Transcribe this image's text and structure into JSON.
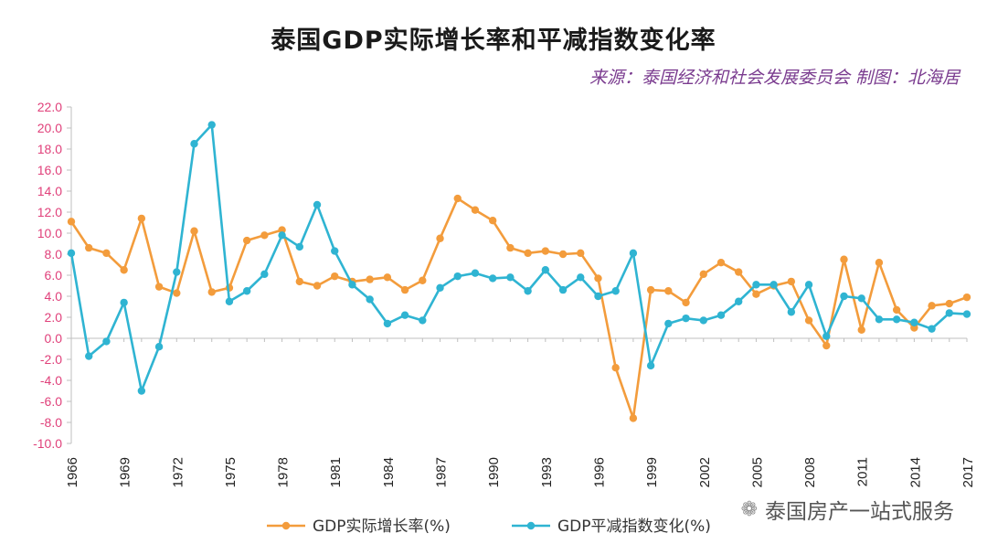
{
  "chart_data": {
    "type": "line",
    "title": "泰国GDP实际增长率和平减指数变化率",
    "subtitle": "来源：泰国经济和社会发展委员会  制图：北海居",
    "xlabel": "",
    "ylabel": "",
    "x": [
      1966,
      1967,
      1968,
      1969,
      1970,
      1971,
      1972,
      1973,
      1974,
      1975,
      1976,
      1977,
      1978,
      1979,
      1980,
      1981,
      1982,
      1983,
      1984,
      1985,
      1986,
      1987,
      1988,
      1989,
      1990,
      1991,
      1992,
      1993,
      1994,
      1995,
      1996,
      1997,
      1998,
      1999,
      2000,
      2001,
      2002,
      2003,
      2004,
      2005,
      2006,
      2007,
      2008,
      2009,
      2010,
      2011,
      2012,
      2013,
      2014,
      2015,
      2016,
      2017
    ],
    "x_tick_labels": [
      "1966",
      "1969",
      "1972",
      "1975",
      "1978",
      "1981",
      "1984",
      "1987",
      "1990",
      "1993",
      "1996",
      "1999",
      "2002",
      "2005",
      "2008",
      "2011",
      "2014",
      "2017"
    ],
    "y_tick_labels": [
      "22.0",
      "20.0",
      "18.0",
      "16.0",
      "14.0",
      "12.0",
      "10.0",
      "8.0",
      "6.0",
      "4.0",
      "2.0",
      "0.0",
      "-2.0",
      "-4.0",
      "-6.0",
      "-8.0",
      "-10.0"
    ],
    "ylim": [
      -10,
      22
    ],
    "grid": false,
    "legend_position": "bottom",
    "series": [
      {
        "name": "GDP实际增长率(%)",
        "color": "#f39c3c",
        "values": [
          11.1,
          8.6,
          8.1,
          6.5,
          11.4,
          4.9,
          4.3,
          10.2,
          4.4,
          4.8,
          9.3,
          9.8,
          10.3,
          5.4,
          5.0,
          5.9,
          5.4,
          5.6,
          5.8,
          4.6,
          5.5,
          9.5,
          13.3,
          12.2,
          11.2,
          8.6,
          8.1,
          8.3,
          8.0,
          8.1,
          5.7,
          -2.8,
          -7.6,
          4.6,
          4.5,
          3.4,
          6.1,
          7.2,
          6.3,
          4.2,
          5.0,
          5.4,
          1.7,
          -0.7,
          7.5,
          0.8,
          7.2,
          2.7,
          1.0,
          3.1,
          3.3,
          3.9
        ]
      },
      {
        "name": "GDP平减指数变化(%)",
        "color": "#2fb4d2",
        "values": [
          8.1,
          -1.7,
          -0.3,
          3.4,
          -5.0,
          -0.8,
          6.3,
          18.5,
          20.3,
          3.5,
          4.5,
          6.1,
          9.8,
          8.7,
          12.7,
          8.3,
          5.1,
          3.7,
          1.4,
          2.2,
          1.7,
          4.8,
          5.9,
          6.2,
          5.7,
          5.8,
          4.5,
          6.5,
          4.6,
          5.8,
          4.0,
          4.5,
          8.1,
          -2.6,
          1.4,
          1.9,
          1.7,
          2.2,
          3.5,
          5.1,
          5.1,
          2.5,
          5.1,
          0.2,
          4.0,
          3.8,
          1.8,
          1.8,
          1.5,
          0.9,
          2.4,
          2.3
        ]
      }
    ]
  },
  "watermark": {
    "icon": "wechat-icon",
    "text": "泰国房产一站式服务"
  }
}
